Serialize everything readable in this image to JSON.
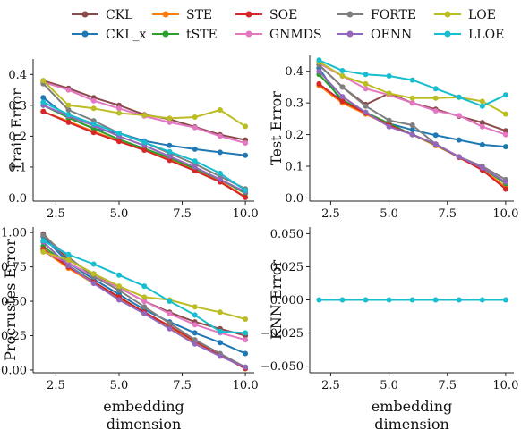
{
  "legend": {
    "entries": [
      {
        "name": "CKL",
        "color": "#8c4a4a"
      },
      {
        "name": "STE",
        "color": "#ff7f0e"
      },
      {
        "name": "SOE",
        "color": "#d62728"
      },
      {
        "name": "FORTE",
        "color": "#7f7f7f"
      },
      {
        "name": "LOE",
        "color": "#bcbd22"
      },
      {
        "name": "CKL_x",
        "color": "#1f77b4"
      },
      {
        "name": "tSTE",
        "color": "#2ca02c"
      },
      {
        "name": "GNMDS",
        "color": "#e377c2"
      },
      {
        "name": "OENN",
        "color": "#9467bd"
      },
      {
        "name": "LLOE",
        "color": "#17becf"
      }
    ]
  },
  "chart_data": [
    {
      "type": "line",
      "ylabel": "Train Error",
      "xlabel": "",
      "x": [
        2,
        3,
        4,
        5,
        6,
        7,
        8,
        9,
        10
      ],
      "xlim": [
        1.6,
        10.35
      ],
      "ylim": [
        -0.01,
        0.45
      ],
      "xticks": [
        "2.5",
        "5.0",
        "7.5",
        "10.0"
      ],
      "xtick_values": [
        2.5,
        5,
        7.5,
        10
      ],
      "yticks": [
        "0.0",
        "0.1",
        "0.2",
        "0.3",
        "0.4"
      ],
      "ytick_values": [
        0,
        0.1,
        0.2,
        0.3,
        0.4
      ],
      "series": [
        {
          "name": "CKL",
          "color": "#8c4a4a",
          "values": [
            0.38,
            0.355,
            0.325,
            0.3,
            0.27,
            0.255,
            0.23,
            0.205,
            0.188
          ]
        },
        {
          "name": "CKL_x",
          "color": "#1f77b4",
          "values": [
            0.325,
            0.26,
            0.225,
            0.21,
            0.185,
            0.17,
            0.158,
            0.148,
            0.138
          ]
        },
        {
          "name": "STE",
          "color": "#ff7f0e",
          "values": [
            0.28,
            0.248,
            0.215,
            0.185,
            0.158,
            0.125,
            0.09,
            0.055,
            0.003
          ]
        },
        {
          "name": "tSTE",
          "color": "#2ca02c",
          "values": [
            0.3,
            0.26,
            0.225,
            0.19,
            0.16,
            0.13,
            0.095,
            0.06,
            0.015
          ]
        },
        {
          "name": "SOE",
          "color": "#d62728",
          "values": [
            0.28,
            0.245,
            0.212,
            0.183,
            0.155,
            0.122,
            0.088,
            0.052,
            0.002
          ]
        },
        {
          "name": "GNMDS",
          "color": "#e377c2",
          "values": [
            0.375,
            0.35,
            0.315,
            0.29,
            0.265,
            0.245,
            0.228,
            0.2,
            0.178
          ]
        },
        {
          "name": "FORTE",
          "color": "#7f7f7f",
          "values": [
            0.37,
            0.285,
            0.25,
            0.21,
            0.18,
            0.145,
            0.11,
            0.07,
            0.03
          ]
        },
        {
          "name": "OENN",
          "color": "#9467bd",
          "values": [
            0.3,
            0.265,
            0.235,
            0.2,
            0.17,
            0.135,
            0.1,
            0.06,
            0.02
          ]
        },
        {
          "name": "LOE",
          "color": "#bcbd22",
          "values": [
            0.38,
            0.3,
            0.29,
            0.275,
            0.268,
            0.258,
            0.262,
            0.285,
            0.232
          ]
        },
        {
          "name": "LLOE",
          "color": "#17becf",
          "values": [
            0.31,
            0.27,
            0.24,
            0.21,
            0.18,
            0.15,
            0.12,
            0.08,
            0.025
          ]
        }
      ]
    },
    {
      "type": "line",
      "ylabel": "Test Error",
      "xlabel": "",
      "x": [
        2,
        3,
        4,
        5,
        6,
        7,
        8,
        9,
        10
      ],
      "xlim": [
        1.6,
        10.35
      ],
      "ylim": [
        -0.01,
        0.45
      ],
      "xticks": [
        "2.5",
        "5.0",
        "7.5",
        "10.0"
      ],
      "xtick_values": [
        2.5,
        5,
        7.5,
        10
      ],
      "yticks": [
        "0.0",
        "0.1",
        "0.2",
        "0.3",
        "0.4"
      ],
      "ytick_values": [
        0,
        0.1,
        0.2,
        0.3,
        0.4
      ],
      "series": [
        {
          "name": "CKL",
          "color": "#8c4a4a",
          "values": [
            0.42,
            0.35,
            0.295,
            0.33,
            0.3,
            0.28,
            0.258,
            0.238,
            0.212
          ]
        },
        {
          "name": "CKL_x",
          "color": "#1f77b4",
          "values": [
            0.41,
            0.3,
            0.27,
            0.235,
            0.215,
            0.198,
            0.183,
            0.168,
            0.162
          ]
        },
        {
          "name": "STE",
          "color": "#ff7f0e",
          "values": [
            0.355,
            0.3,
            0.265,
            0.23,
            0.2,
            0.165,
            0.13,
            0.09,
            0.035
          ]
        },
        {
          "name": "tSTE",
          "color": "#2ca02c",
          "values": [
            0.39,
            0.31,
            0.27,
            0.235,
            0.2,
            0.168,
            0.128,
            0.095,
            0.045
          ]
        },
        {
          "name": "SOE",
          "color": "#d62728",
          "values": [
            0.36,
            0.305,
            0.268,
            0.23,
            0.2,
            0.17,
            0.128,
            0.088,
            0.028
          ]
        },
        {
          "name": "GNMDS",
          "color": "#e377c2",
          "values": [
            0.425,
            0.385,
            0.345,
            0.325,
            0.3,
            0.275,
            0.26,
            0.225,
            0.2
          ]
        },
        {
          "name": "FORTE",
          "color": "#7f7f7f",
          "values": [
            0.42,
            0.35,
            0.29,
            0.245,
            0.23,
            0.17,
            0.13,
            0.1,
            0.058
          ]
        },
        {
          "name": "OENN",
          "color": "#9467bd",
          "values": [
            0.4,
            0.32,
            0.27,
            0.225,
            0.2,
            0.17,
            0.13,
            0.095,
            0.05
          ]
        },
        {
          "name": "LOE",
          "color": "#bcbd22",
          "values": [
            0.43,
            0.385,
            0.36,
            0.33,
            0.315,
            0.315,
            0.318,
            0.305,
            0.265
          ]
        },
        {
          "name": "LLOE",
          "color": "#17becf",
          "values": [
            0.435,
            0.402,
            0.39,
            0.385,
            0.372,
            0.345,
            0.318,
            0.29,
            0.325
          ]
        }
      ]
    },
    {
      "type": "line",
      "ylabel": "Procrustes Error",
      "xlabel": "embedding\ndimension",
      "x": [
        2,
        3,
        4,
        5,
        6,
        7,
        8,
        9,
        10
      ],
      "xlim": [
        1.6,
        10.35
      ],
      "ylim": [
        -0.02,
        1.04
      ],
      "xticks": [
        "2.5",
        "5.0",
        "7.5",
        "10.0"
      ],
      "xtick_values": [
        2.5,
        5,
        7.5,
        10
      ],
      "yticks": [
        "0.00",
        "0.25",
        "0.50",
        "0.75",
        "1.00"
      ],
      "ytick_values": [
        0,
        0.25,
        0.5,
        0.75,
        1
      ],
      "series": [
        {
          "name": "CKL",
          "color": "#8c4a4a",
          "values": [
            0.99,
            0.8,
            0.7,
            0.6,
            0.5,
            0.42,
            0.35,
            0.3,
            0.25
          ]
        },
        {
          "name": "CKL_x",
          "color": "#1f77b4",
          "values": [
            0.97,
            0.78,
            0.66,
            0.55,
            0.44,
            0.35,
            0.27,
            0.2,
            0.12
          ]
        },
        {
          "name": "STE",
          "color": "#ff7f0e",
          "values": [
            0.87,
            0.74,
            0.63,
            0.52,
            0.41,
            0.31,
            0.2,
            0.11,
            0.02
          ]
        },
        {
          "name": "tSTE",
          "color": "#2ca02c",
          "values": [
            0.9,
            0.76,
            0.64,
            0.53,
            0.42,
            0.32,
            0.21,
            0.11,
            0.01
          ]
        },
        {
          "name": "SOE",
          "color": "#d62728",
          "values": [
            0.88,
            0.75,
            0.64,
            0.53,
            0.42,
            0.32,
            0.21,
            0.11,
            0.01
          ]
        },
        {
          "name": "GNMDS",
          "color": "#e377c2",
          "values": [
            0.86,
            0.78,
            0.68,
            0.6,
            0.5,
            0.41,
            0.33,
            0.27,
            0.22
          ]
        },
        {
          "name": "FORTE",
          "color": "#7f7f7f",
          "values": [
            0.98,
            0.82,
            0.68,
            0.58,
            0.46,
            0.34,
            0.22,
            0.12,
            0.02
          ]
        },
        {
          "name": "OENN",
          "color": "#9467bd",
          "values": [
            0.93,
            0.76,
            0.63,
            0.51,
            0.41,
            0.3,
            0.19,
            0.1,
            0.02
          ]
        },
        {
          "name": "LOE",
          "color": "#bcbd22",
          "values": [
            0.86,
            0.8,
            0.7,
            0.61,
            0.53,
            0.51,
            0.46,
            0.42,
            0.37
          ]
        },
        {
          "name": "LLOE",
          "color": "#17becf",
          "values": [
            0.94,
            0.84,
            0.77,
            0.69,
            0.61,
            0.5,
            0.4,
            0.28,
            0.27
          ]
        }
      ]
    },
    {
      "type": "line",
      "ylabel": "KNN Error",
      "xlabel": "embedding\ndimension",
      "x": [
        2,
        3,
        4,
        5,
        6,
        7,
        8,
        9,
        10
      ],
      "xlim": [
        1.6,
        10.35
      ],
      "ylim": [
        -0.055,
        0.055
      ],
      "xticks": [
        "2.5",
        "5.0",
        "7.5",
        "10.0"
      ],
      "xtick_values": [
        2.5,
        5,
        7.5,
        10
      ],
      "yticks": [
        "−0.050",
        "−0.025",
        "0.000",
        "0.025",
        "0.050"
      ],
      "ytick_values": [
        -0.05,
        -0.025,
        0,
        0.025,
        0.05
      ],
      "series": [
        {
          "name": "LLOE",
          "color": "#17becf",
          "values": [
            0,
            0,
            0,
            0,
            0,
            0,
            0,
            0,
            0
          ]
        }
      ]
    }
  ]
}
